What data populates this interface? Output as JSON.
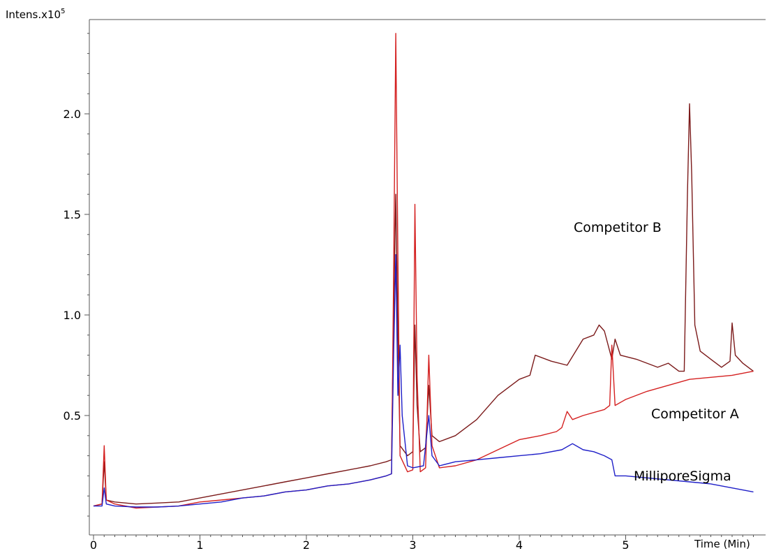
{
  "chart_data": {
    "type": "line",
    "ylabel": "Intens.",
    "ylabel_exponent": "x10",
    "ylabel_power": "5",
    "xlabel": "Time (Min)",
    "xlim": [
      0,
      6.2
    ],
    "ylim": [
      0,
      2.43
    ],
    "x_ticks": [
      "0",
      "1",
      "2",
      "3",
      "4",
      "5"
    ],
    "y_ticks": [
      "0.5",
      "1.0",
      "1.5",
      "2.0"
    ],
    "grid": false,
    "series": [
      {
        "name": "Competitor B",
        "color": "#7b1a1a",
        "points": [
          [
            0,
            0.05
          ],
          [
            0.08,
            0.06
          ],
          [
            0.1,
            0.27
          ],
          [
            0.12,
            0.08
          ],
          [
            0.2,
            0.07
          ],
          [
            0.4,
            0.06
          ],
          [
            0.6,
            0.065
          ],
          [
            0.8,
            0.07
          ],
          [
            1.0,
            0.09
          ],
          [
            1.2,
            0.11
          ],
          [
            1.4,
            0.13
          ],
          [
            1.6,
            0.15
          ],
          [
            1.8,
            0.17
          ],
          [
            2.0,
            0.19
          ],
          [
            2.2,
            0.21
          ],
          [
            2.4,
            0.23
          ],
          [
            2.6,
            0.25
          ],
          [
            2.75,
            0.27
          ],
          [
            2.8,
            0.28
          ],
          [
            2.82,
            1.0
          ],
          [
            2.84,
            1.6
          ],
          [
            2.86,
            0.9
          ],
          [
            2.88,
            0.35
          ],
          [
            2.95,
            0.3
          ],
          [
            3.0,
            0.32
          ],
          [
            3.02,
            0.95
          ],
          [
            3.04,
            0.55
          ],
          [
            3.07,
            0.32
          ],
          [
            3.12,
            0.34
          ],
          [
            3.15,
            0.65
          ],
          [
            3.18,
            0.4
          ],
          [
            3.25,
            0.37
          ],
          [
            3.4,
            0.4
          ],
          [
            3.6,
            0.48
          ],
          [
            3.8,
            0.6
          ],
          [
            4.0,
            0.68
          ],
          [
            4.1,
            0.7
          ],
          [
            4.15,
            0.8
          ],
          [
            4.3,
            0.77
          ],
          [
            4.45,
            0.75
          ],
          [
            4.6,
            0.88
          ],
          [
            4.7,
            0.9
          ],
          [
            4.75,
            0.95
          ],
          [
            4.8,
            0.92
          ],
          [
            4.87,
            0.78
          ],
          [
            4.9,
            0.88
          ],
          [
            4.95,
            0.8
          ],
          [
            5.1,
            0.78
          ],
          [
            5.3,
            0.74
          ],
          [
            5.4,
            0.76
          ],
          [
            5.5,
            0.72
          ],
          [
            5.55,
            0.72
          ],
          [
            5.58,
            1.6
          ],
          [
            5.6,
            2.05
          ],
          [
            5.62,
            1.7
          ],
          [
            5.65,
            0.95
          ],
          [
            5.7,
            0.82
          ],
          [
            5.8,
            0.78
          ],
          [
            5.9,
            0.74
          ],
          [
            5.98,
            0.77
          ],
          [
            6.0,
            0.96
          ],
          [
            6.03,
            0.8
          ],
          [
            6.1,
            0.76
          ],
          [
            6.2,
            0.72
          ]
        ]
      },
      {
        "name": "Competitor A",
        "color": "#d42020",
        "points": [
          [
            0,
            0.05
          ],
          [
            0.08,
            0.06
          ],
          [
            0.1,
            0.35
          ],
          [
            0.12,
            0.08
          ],
          [
            0.2,
            0.06
          ],
          [
            0.4,
            0.04
          ],
          [
            0.6,
            0.045
          ],
          [
            0.8,
            0.05
          ],
          [
            1.0,
            0.07
          ],
          [
            1.2,
            0.08
          ],
          [
            1.4,
            0.09
          ],
          [
            1.6,
            0.1
          ],
          [
            1.8,
            0.12
          ],
          [
            2.0,
            0.13
          ],
          [
            2.2,
            0.15
          ],
          [
            2.4,
            0.16
          ],
          [
            2.6,
            0.18
          ],
          [
            2.75,
            0.2
          ],
          [
            2.8,
            0.21
          ],
          [
            2.82,
            1.2
          ],
          [
            2.84,
            2.4
          ],
          [
            2.86,
            1.3
          ],
          [
            2.88,
            0.3
          ],
          [
            2.95,
            0.22
          ],
          [
            3.0,
            0.23
          ],
          [
            3.02,
            1.55
          ],
          [
            3.04,
            0.7
          ],
          [
            3.07,
            0.22
          ],
          [
            3.12,
            0.24
          ],
          [
            3.15,
            0.8
          ],
          [
            3.18,
            0.35
          ],
          [
            3.25,
            0.24
          ],
          [
            3.4,
            0.25
          ],
          [
            3.6,
            0.28
          ],
          [
            3.8,
            0.33
          ],
          [
            4.0,
            0.38
          ],
          [
            4.2,
            0.4
          ],
          [
            4.35,
            0.42
          ],
          [
            4.4,
            0.44
          ],
          [
            4.45,
            0.52
          ],
          [
            4.5,
            0.48
          ],
          [
            4.6,
            0.5
          ],
          [
            4.8,
            0.53
          ],
          [
            4.85,
            0.55
          ],
          [
            4.87,
            0.85
          ],
          [
            4.9,
            0.55
          ],
          [
            5.0,
            0.58
          ],
          [
            5.2,
            0.62
          ],
          [
            5.4,
            0.65
          ],
          [
            5.6,
            0.68
          ],
          [
            5.8,
            0.69
          ],
          [
            6.0,
            0.7
          ],
          [
            6.2,
            0.72
          ]
        ]
      },
      {
        "name": "MilliporeSigma",
        "color": "#1f1fc8",
        "points": [
          [
            0,
            0.05
          ],
          [
            0.08,
            0.05
          ],
          [
            0.1,
            0.14
          ],
          [
            0.12,
            0.06
          ],
          [
            0.2,
            0.05
          ],
          [
            0.4,
            0.045
          ],
          [
            0.6,
            0.045
          ],
          [
            0.8,
            0.05
          ],
          [
            1.0,
            0.06
          ],
          [
            1.2,
            0.07
          ],
          [
            1.4,
            0.09
          ],
          [
            1.6,
            0.1
          ],
          [
            1.8,
            0.12
          ],
          [
            2.0,
            0.13
          ],
          [
            2.2,
            0.15
          ],
          [
            2.4,
            0.16
          ],
          [
            2.6,
            0.18
          ],
          [
            2.75,
            0.2
          ],
          [
            2.8,
            0.21
          ],
          [
            2.82,
            0.8
          ],
          [
            2.84,
            1.3
          ],
          [
            2.86,
            0.6
          ],
          [
            2.88,
            0.85
          ],
          [
            2.9,
            0.5
          ],
          [
            2.95,
            0.25
          ],
          [
            3.0,
            0.24
          ],
          [
            3.1,
            0.25
          ],
          [
            3.15,
            0.5
          ],
          [
            3.18,
            0.3
          ],
          [
            3.25,
            0.25
          ],
          [
            3.4,
            0.27
          ],
          [
            3.6,
            0.28
          ],
          [
            3.8,
            0.29
          ],
          [
            4.0,
            0.3
          ],
          [
            4.2,
            0.31
          ],
          [
            4.4,
            0.33
          ],
          [
            4.5,
            0.36
          ],
          [
            4.6,
            0.33
          ],
          [
            4.7,
            0.32
          ],
          [
            4.8,
            0.3
          ],
          [
            4.87,
            0.28
          ],
          [
            4.9,
            0.2
          ],
          [
            5.0,
            0.2
          ],
          [
            5.2,
            0.19
          ],
          [
            5.4,
            0.18
          ],
          [
            5.6,
            0.17
          ],
          [
            5.8,
            0.16
          ],
          [
            6.0,
            0.14
          ],
          [
            6.2,
            0.12
          ]
        ]
      }
    ],
    "annotations": [
      "Competitor B",
      "Competitor A",
      "MilliporeSigma"
    ]
  }
}
